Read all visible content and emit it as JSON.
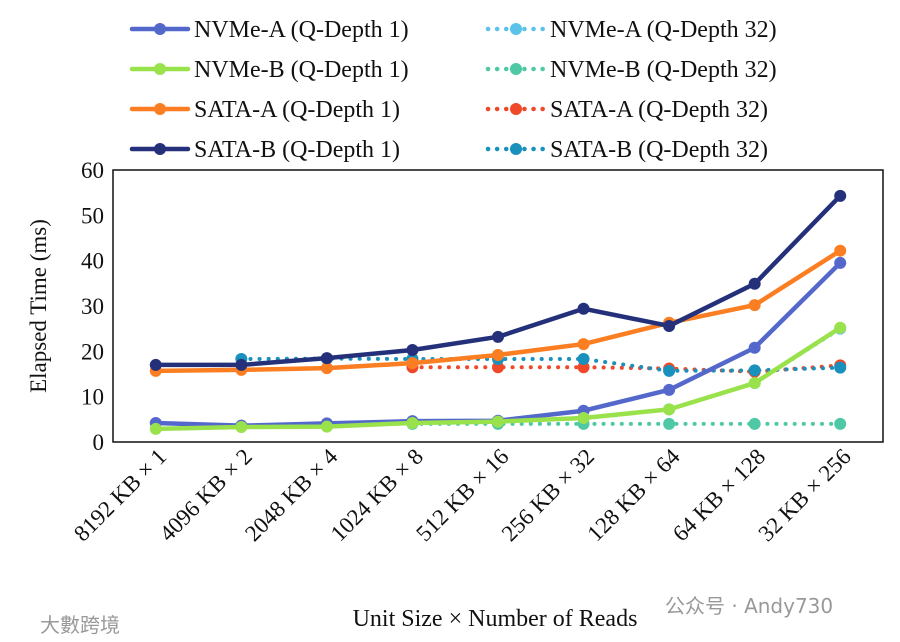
{
  "chart_data": {
    "type": "line",
    "xlabel": "Unit Size × Number of Reads",
    "ylabel": "Elapsed Time (ms)",
    "ylim": [
      0,
      60
    ],
    "yticks": [
      "0",
      "10",
      "20",
      "30",
      "40",
      "50",
      "60"
    ],
    "categories": [
      "8192 KB × 1",
      "4096 KB × 2",
      "2048 KB × 4",
      "1024 KB × 8",
      "512 KB × 16",
      "256 KB × 32",
      "128 KB × 64",
      "64 KB × 128",
      "32 KB × 256"
    ],
    "legend_placement": "top",
    "series": [
      {
        "name": "NVMe-A (Q-Depth 1)",
        "color": "#5468cc",
        "style": "solid",
        "values": [
          4.2,
          3.6,
          4.1,
          4.6,
          4.7,
          6.9,
          11.5,
          20.8,
          39.5
        ]
      },
      {
        "name": "NVMe-A (Q-Depth 32)",
        "color": "#5bc3ea",
        "style": "dotted",
        "values": [
          null,
          null,
          null,
          4.2,
          4.5,
          5.3,
          7.2,
          13,
          25
        ]
      },
      {
        "name": "NVMe-B (Q-Depth 1)",
        "color": "#9ae24c",
        "style": "solid",
        "values": [
          2.9,
          3.3,
          3.4,
          4.2,
          4.5,
          5.3,
          7.2,
          13,
          25.2
        ]
      },
      {
        "name": "NVMe-B (Q-Depth 32)",
        "color": "#4fc9a5",
        "style": "dotted",
        "values": [
          null,
          null,
          null,
          4,
          4,
          4,
          4,
          4,
          4
        ]
      },
      {
        "name": "SATA-A (Q-Depth 1)",
        "color": "#fb7f22",
        "style": "solid",
        "values": [
          15.7,
          15.9,
          16.3,
          17.4,
          19.2,
          21.6,
          26.3,
          30.2,
          42.2
        ]
      },
      {
        "name": "SATA-A (Q-Depth 32)",
        "color": "#ee4a2a",
        "style": "dotted",
        "values": [
          null,
          null,
          null,
          16.5,
          16.5,
          16.5,
          16.2,
          15.5,
          16.9
        ]
      },
      {
        "name": "SATA-B (Q-Depth 1)",
        "color": "#24317a",
        "style": "solid",
        "values": [
          17,
          17,
          18.5,
          20.3,
          23.2,
          29.4,
          25.6,
          34.9,
          54.3
        ]
      },
      {
        "name": "SATA-B (Q-Depth 32)",
        "color": "#1a90bd",
        "style": "dotted",
        "values": [
          null,
          18.3,
          18.4,
          18.3,
          18.3,
          18.3,
          15.7,
          15.8,
          16.4
        ]
      }
    ]
  },
  "watermark": {
    "left": "大數跨境",
    "right": "公众号 · Andy730"
  }
}
